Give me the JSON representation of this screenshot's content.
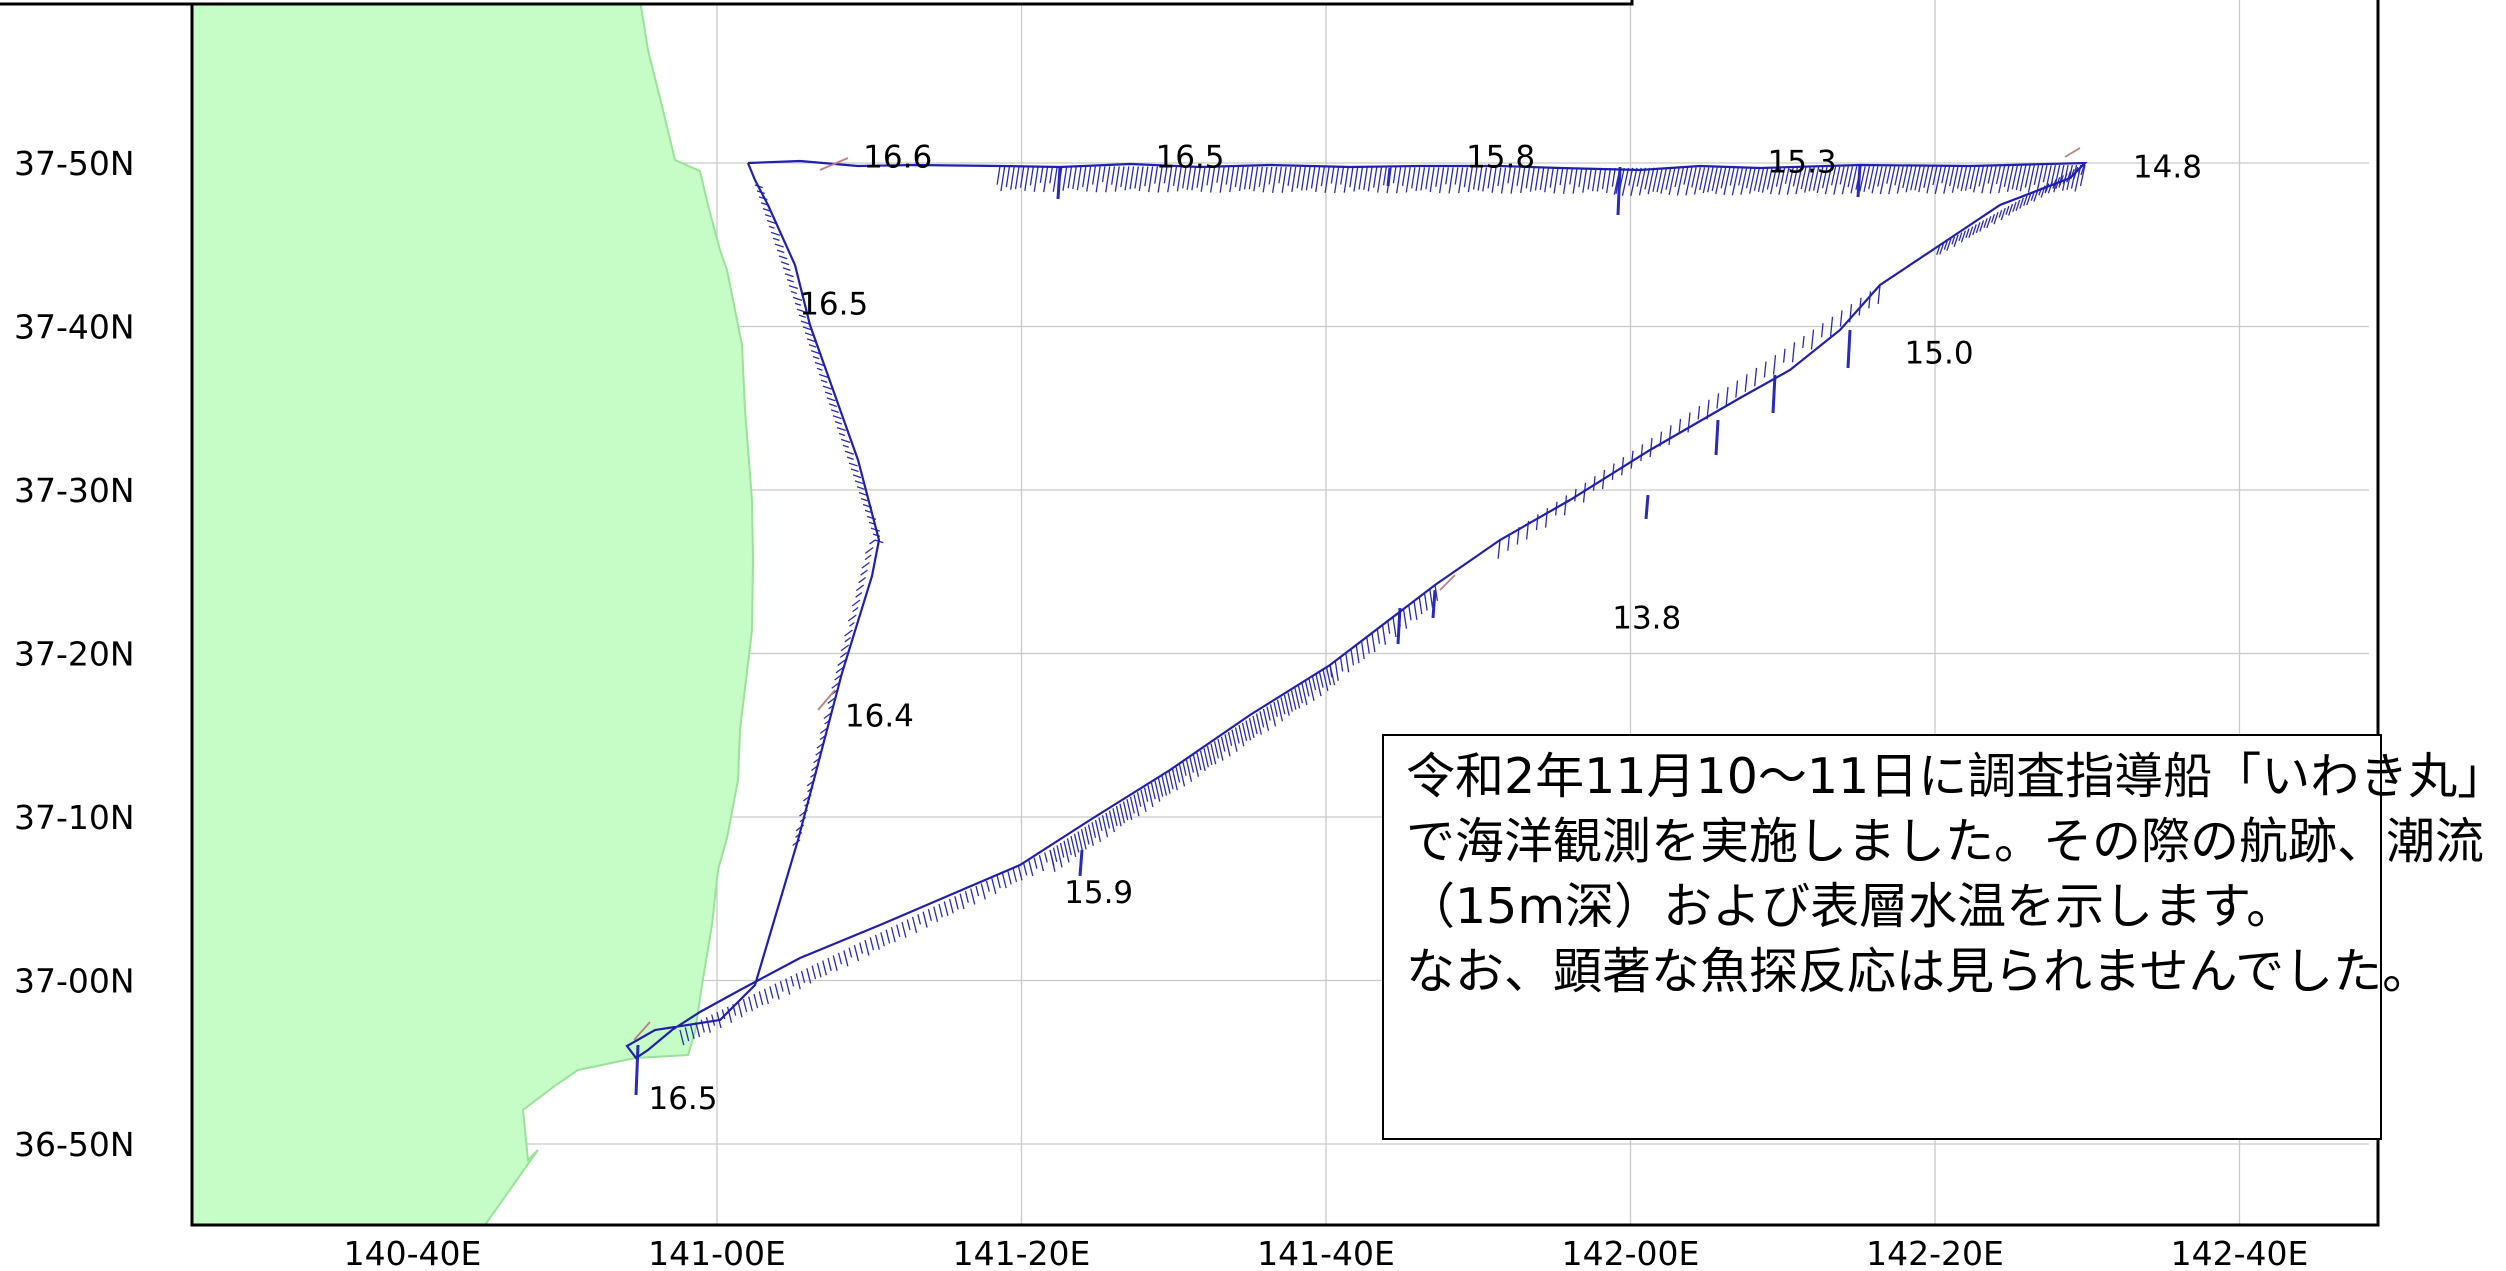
{
  "map": {
    "lat_labels": [
      "37-50N",
      "37-40N",
      "37-30N",
      "37-20N",
      "37-10N",
      "37-00N",
      "36-50N"
    ],
    "lon_labels": [
      "140-40E",
      "141-00E",
      "141-20E",
      "141-40E",
      "142-00E",
      "142-20E",
      "142-40E"
    ],
    "colors": {
      "land": "#c6fcc6",
      "coast": "#9be09b",
      "track": "#1f1fb0",
      "vectors": "#2a2ab8",
      "grid": "#c9c9c9",
      "wind": "#c08080"
    },
    "temperature_labels": [
      {
        "value": "16.6",
        "lon": 141.16,
        "lat": 37.84
      },
      {
        "value": "16.5",
        "lon": 141.48,
        "lat": 37.84
      },
      {
        "value": "15.8",
        "lon": 141.82,
        "lat": 37.84
      },
      {
        "value": "15.3",
        "lon": 142.15,
        "lat": 37.835
      },
      {
        "value": "14.8",
        "lon": 142.55,
        "lat": 37.83
      },
      {
        "value": "16.5",
        "lon": 141.09,
        "lat": 37.69
      },
      {
        "value": "15.0",
        "lon": 142.3,
        "lat": 37.64
      },
      {
        "value": "13.8",
        "lon": 141.98,
        "lat": 37.37
      },
      {
        "value": "16.4",
        "lon": 141.14,
        "lat": 37.27
      },
      {
        "value": "15.9",
        "lon": 141.38,
        "lat": 37.09
      },
      {
        "value": "16.5",
        "lon": 140.925,
        "lat": 36.88
      }
    ]
  },
  "note": {
    "text": "令和2年11月10～11日に調査指導船「いわき丸」で海洋観測を実施しました。その際の航跡、潮流（15m深）および表層水温を示します。\nなお、顕著な魚探反応は見られませんでした。"
  }
}
